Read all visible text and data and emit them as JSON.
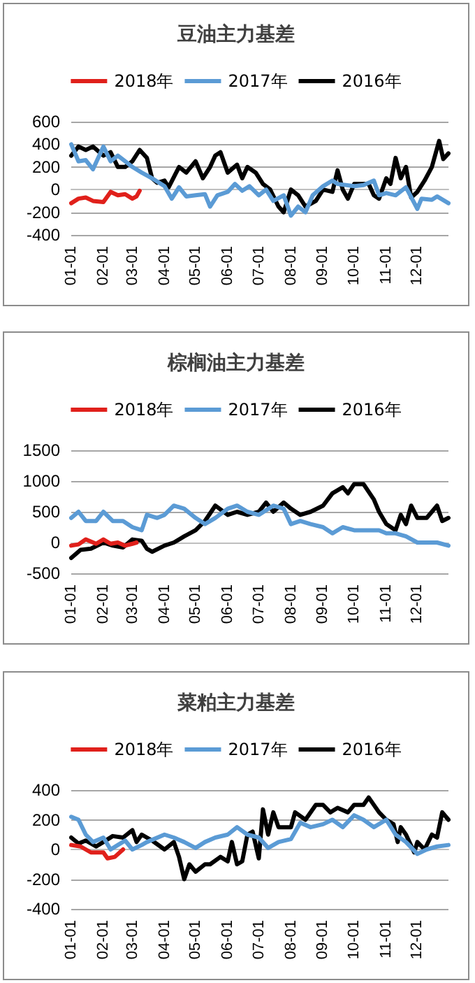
{
  "chart_data": [
    {
      "type": "line",
      "title": "豆油主力基差",
      "legend": "top",
      "grid": "y",
      "marker": "none",
      "line_style": "solid",
      "xlim": [
        "--01-01",
        "--12-31"
      ],
      "xticks": [
        {
          "value": "--01-01",
          "label": "01-01"
        },
        {
          "value": "--02-01",
          "label": "02-01"
        },
        {
          "value": "--03-01",
          "label": "03-01"
        },
        {
          "value": "--04-01",
          "label": "04-01"
        },
        {
          "value": "--05-01",
          "label": "05-01"
        },
        {
          "value": "--06-01",
          "label": "06-01"
        },
        {
          "value": "--07-01",
          "label": "07-01"
        },
        {
          "value": "--08-01",
          "label": "08-01"
        },
        {
          "value": "--09-01",
          "label": "09-01"
        },
        {
          "value": "--10-01",
          "label": "10-01"
        },
        {
          "value": "--11-01",
          "label": "11-01"
        },
        {
          "value": "--12-01",
          "label": "12-01"
        }
      ],
      "ylim": [
        -400,
        600
      ],
      "yticks": [
        -400,
        -200,
        0,
        200,
        400,
        600
      ],
      "series": [
        {
          "name": "2018年",
          "color": "#e0201b",
          "x": [
            "--01-01",
            "--01-08",
            "--01-15",
            "--01-22",
            "--02-01",
            "--02-08",
            "--02-15",
            "--02-22",
            "--03-01",
            "--03-05",
            "--03-08"
          ],
          "values": [
            -120,
            -80,
            -70,
            -100,
            -110,
            -20,
            -50,
            -40,
            -80,
            -60,
            -10
          ]
        },
        {
          "name": "2017年",
          "color": "#5b9bd5",
          "x": [
            "--01-01",
            "--01-08",
            "--01-15",
            "--01-22",
            "--02-01",
            "--02-08",
            "--02-15",
            "--02-22",
            "--03-01",
            "--03-10",
            "--03-20",
            "--04-01",
            "--04-08",
            "--04-15",
            "--04-22",
            "--05-01",
            "--05-10",
            "--05-15",
            "--05-22",
            "--06-01",
            "--06-08",
            "--06-15",
            "--06-22",
            "--07-01",
            "--07-08",
            "--07-15",
            "--07-25",
            "--08-01",
            "--08-08",
            "--08-15",
            "--08-22",
            "--09-01",
            "--09-10",
            "--09-15",
            "--10-01",
            "--10-10",
            "--10-20",
            "--10-25",
            "--11-01",
            "--11-10",
            "--11-20",
            "--12-01",
            "--12-05",
            "--12-15",
            "--12-20",
            "--12-31"
          ],
          "values": [
            400,
            250,
            260,
            180,
            380,
            250,
            300,
            250,
            200,
            150,
            100,
            30,
            -80,
            20,
            -60,
            -50,
            -40,
            -150,
            -50,
            -20,
            50,
            -10,
            30,
            -50,
            0,
            -100,
            -50,
            -230,
            -150,
            -200,
            -50,
            30,
            80,
            50,
            30,
            40,
            80,
            -50,
            -30,
            -50,
            20,
            -170,
            -80,
            -90,
            -60,
            -120
          ]
        },
        {
          "name": "2016年",
          "color": "#000000",
          "x": [
            "--01-01",
            "--01-08",
            "--01-15",
            "--01-22",
            "--02-01",
            "--02-08",
            "--02-15",
            "--02-22",
            "--03-01",
            "--03-08",
            "--03-15",
            "--03-20",
            "--03-25",
            "--04-01",
            "--04-05",
            "--04-15",
            "--04-22",
            "--05-01",
            "--05-08",
            "--05-15",
            "--05-20",
            "--05-25",
            "--06-01",
            "--06-10",
            "--06-15",
            "--06-20",
            "--06-28",
            "--07-05",
            "--07-12",
            "--07-20",
            "--07-25",
            "--08-01",
            "--08-08",
            "--08-15",
            "--08-25",
            "--09-01",
            "--09-10",
            "--09-15",
            "--09-20",
            "--09-25",
            "--10-01",
            "--10-15",
            "--10-20",
            "--10-25",
            "--11-01",
            "--11-05",
            "--11-10",
            "--11-15",
            "--11-20",
            "--11-25",
            "--12-01",
            "--12-08",
            "--12-15",
            "--12-22",
            "--12-26",
            "--12-31"
          ],
          "values": [
            300,
            380,
            350,
            380,
            300,
            330,
            200,
            200,
            250,
            350,
            280,
            100,
            60,
            80,
            20,
            200,
            150,
            250,
            100,
            200,
            300,
            330,
            150,
            220,
            100,
            200,
            150,
            50,
            0,
            -150,
            -200,
            0,
            -50,
            -150,
            -100,
            0,
            -20,
            170,
            0,
            -80,
            50,
            50,
            -50,
            -80,
            100,
            50,
            280,
            100,
            200,
            -70,
            -20,
            80,
            200,
            430,
            270,
            320
          ]
        }
      ]
    },
    {
      "type": "line",
      "title": "棕榈油主力基差",
      "legend": "top",
      "grid": "y",
      "marker": "none",
      "line_style": "solid",
      "xlim": [
        "--01-01",
        "--12-31"
      ],
      "xticks": [
        {
          "value": "--01-01",
          "label": "01-01"
        },
        {
          "value": "--02-01",
          "label": "02-01"
        },
        {
          "value": "--03-01",
          "label": "03-01"
        },
        {
          "value": "--04-01",
          "label": "04-01"
        },
        {
          "value": "--05-01",
          "label": "05-01"
        },
        {
          "value": "--06-01",
          "label": "06-01"
        },
        {
          "value": "--07-01",
          "label": "07-01"
        },
        {
          "value": "--08-01",
          "label": "08-01"
        },
        {
          "value": "--09-01",
          "label": "09-01"
        },
        {
          "value": "--10-01",
          "label": "10-01"
        },
        {
          "value": "--11-01",
          "label": "11-01"
        },
        {
          "value": "--12-01",
          "label": "12-01"
        }
      ],
      "ylim": [
        -500,
        1500
      ],
      "yticks": [
        -500,
        0,
        500,
        1000,
        1500
      ],
      "series": [
        {
          "name": "2018年",
          "color": "#e0201b",
          "x": [
            "--01-01",
            "--01-08",
            "--01-15",
            "--01-25",
            "--02-01",
            "--02-08",
            "--02-15",
            "--02-22",
            "--03-01",
            "--03-05"
          ],
          "values": [
            -50,
            -30,
            50,
            -20,
            50,
            -20,
            0,
            -50,
            -20,
            0
          ]
        },
        {
          "name": "2017年",
          "color": "#5b9bd5",
          "x": [
            "--01-01",
            "--01-08",
            "--01-15",
            "--01-25",
            "--02-01",
            "--02-10",
            "--02-20",
            "--03-01",
            "--03-10",
            "--03-15",
            "--03-25",
            "--04-01",
            "--04-10",
            "--04-20",
            "--05-01",
            "--05-10",
            "--05-20",
            "--06-01",
            "--06-10",
            "--06-20",
            "--07-01",
            "--07-15",
            "--07-25",
            "--08-01",
            "--08-10",
            "--08-20",
            "--09-01",
            "--09-10",
            "--09-20",
            "--10-01",
            "--10-15",
            "--10-25",
            "--11-01",
            "--11-10",
            "--11-20",
            "--12-01",
            "--12-10",
            "--12-20",
            "--12-31"
          ],
          "values": [
            400,
            500,
            350,
            350,
            500,
            350,
            350,
            250,
            200,
            450,
            400,
            450,
            600,
            550,
            400,
            300,
            400,
            550,
            600,
            500,
            450,
            600,
            550,
            300,
            350,
            300,
            250,
            150,
            250,
            200,
            200,
            200,
            150,
            150,
            100,
            0,
            0,
            0,
            -50
          ]
        },
        {
          "name": "2016年",
          "color": "#000000",
          "x": [
            "--01-01",
            "--01-10",
            "--01-20",
            "--02-01",
            "--02-10",
            "--02-20",
            "--03-01",
            "--03-10",
            "--03-15",
            "--03-20",
            "--04-01",
            "--04-10",
            "--04-20",
            "--05-01",
            "--05-10",
            "--05-20",
            "--06-01",
            "--06-10",
            "--06-20",
            "--07-01",
            "--07-08",
            "--07-15",
            "--07-25",
            "--08-01",
            "--08-10",
            "--08-20",
            "--09-01",
            "--09-10",
            "--09-20",
            "--09-25",
            "--10-01",
            "--10-10",
            "--10-20",
            "--10-25",
            "--11-01",
            "--11-10",
            "--11-15",
            "--11-20",
            "--11-25",
            "--12-01",
            "--12-10",
            "--12-20",
            "--12-25",
            "--12-31"
          ],
          "values": [
            -250,
            -120,
            -100,
            0,
            -50,
            -80,
            50,
            30,
            -100,
            -150,
            -50,
            0,
            100,
            200,
            350,
            600,
            450,
            500,
            450,
            500,
            650,
            500,
            650,
            550,
            450,
            500,
            600,
            800,
            900,
            800,
            950,
            950,
            700,
            500,
            300,
            200,
            450,
            300,
            600,
            400,
            400,
            600,
            350,
            400
          ]
        }
      ]
    },
    {
      "type": "line",
      "title": "菜粕主力基差",
      "legend": "top",
      "grid": "y",
      "marker": "none",
      "line_style": "solid",
      "xlim": [
        "--01-01",
        "--12-31"
      ],
      "xticks": [
        {
          "value": "--01-01",
          "label": "01-01"
        },
        {
          "value": "--02-01",
          "label": "02-01"
        },
        {
          "value": "--03-01",
          "label": "03-01"
        },
        {
          "value": "--04-01",
          "label": "04-01"
        },
        {
          "value": "--05-01",
          "label": "05-01"
        },
        {
          "value": "--06-01",
          "label": "06-01"
        },
        {
          "value": "--07-01",
          "label": "07-01"
        },
        {
          "value": "--08-01",
          "label": "08-01"
        },
        {
          "value": "--09-01",
          "label": "09-01"
        },
        {
          "value": "--10-01",
          "label": "10-01"
        },
        {
          "value": "--11-01",
          "label": "11-01"
        },
        {
          "value": "--12-01",
          "label": "12-01"
        }
      ],
      "ylim": [
        -400,
        400
      ],
      "yticks": [
        -400,
        -200,
        0,
        200,
        400
      ],
      "series": [
        {
          "name": "2018年",
          "color": "#e0201b",
          "x": [
            "--01-01",
            "--01-10",
            "--01-20",
            "--02-01",
            "--02-05",
            "--02-12",
            "--02-20"
          ],
          "values": [
            30,
            20,
            -20,
            -20,
            -60,
            -50,
            0
          ]
        },
        {
          "name": "2017年",
          "color": "#5b9bd5",
          "x": [
            "--01-01",
            "--01-08",
            "--01-15",
            "--01-22",
            "--02-01",
            "--02-08",
            "--02-15",
            "--02-22",
            "--03-01",
            "--03-10",
            "--03-15",
            "--04-01",
            "--04-10",
            "--04-20",
            "--05-01",
            "--05-10",
            "--05-20",
            "--06-01",
            "--06-10",
            "--06-20",
            "--07-01",
            "--07-10",
            "--07-20",
            "--08-01",
            "--08-10",
            "--08-20",
            "--09-01",
            "--09-10",
            "--09-20",
            "--10-01",
            "--10-10",
            "--10-20",
            "--11-01",
            "--11-10",
            "--11-20",
            "--12-01",
            "--12-10",
            "--12-20",
            "--12-31"
          ],
          "values": [
            220,
            200,
            100,
            50,
            80,
            0,
            30,
            60,
            0,
            30,
            50,
            100,
            80,
            50,
            10,
            50,
            80,
            100,
            150,
            100,
            80,
            10,
            50,
            70,
            180,
            150,
            170,
            200,
            150,
            230,
            200,
            150,
            200,
            100,
            50,
            -30,
            0,
            20,
            30
          ]
        },
        {
          "name": "2016年",
          "color": "#000000",
          "x": [
            "--01-01",
            "--01-08",
            "--01-15",
            "--01-25",
            "--02-01",
            "--02-10",
            "--02-20",
            "--03-01",
            "--03-05",
            "--03-10",
            "--03-20",
            "--04-01",
            "--04-10",
            "--04-15",
            "--04-20",
            "--04-25",
            "--05-01",
            "--05-10",
            "--05-15",
            "--05-25",
            "--06-01",
            "--06-05",
            "--06-10",
            "--06-15",
            "--06-20",
            "--06-25",
            "--07-01",
            "--07-05",
            "--07-10",
            "--07-15",
            "--07-20",
            "--08-01",
            "--08-05",
            "--08-15",
            "--08-25",
            "--09-01",
            "--09-08",
            "--09-15",
            "--09-25",
            "--10-01",
            "--10-10",
            "--10-15",
            "--10-25",
            "--11-01",
            "--11-08",
            "--11-12",
            "--11-15",
            "--11-20",
            "--11-28",
            "--12-01",
            "--12-08",
            "--12-15",
            "--12-20",
            "--12-25",
            "--12-31"
          ],
          "values": [
            80,
            40,
            60,
            20,
            50,
            90,
            80,
            130,
            50,
            100,
            60,
            0,
            50,
            -50,
            -200,
            -100,
            -150,
            -100,
            -100,
            -50,
            -80,
            50,
            -100,
            -80,
            100,
            120,
            -60,
            270,
            100,
            250,
            150,
            150,
            250,
            200,
            300,
            300,
            250,
            280,
            250,
            300,
            300,
            350,
            250,
            200,
            170,
            50,
            150,
            100,
            -20,
            50,
            0,
            100,
            80,
            250,
            200
          ]
        }
      ]
    }
  ]
}
